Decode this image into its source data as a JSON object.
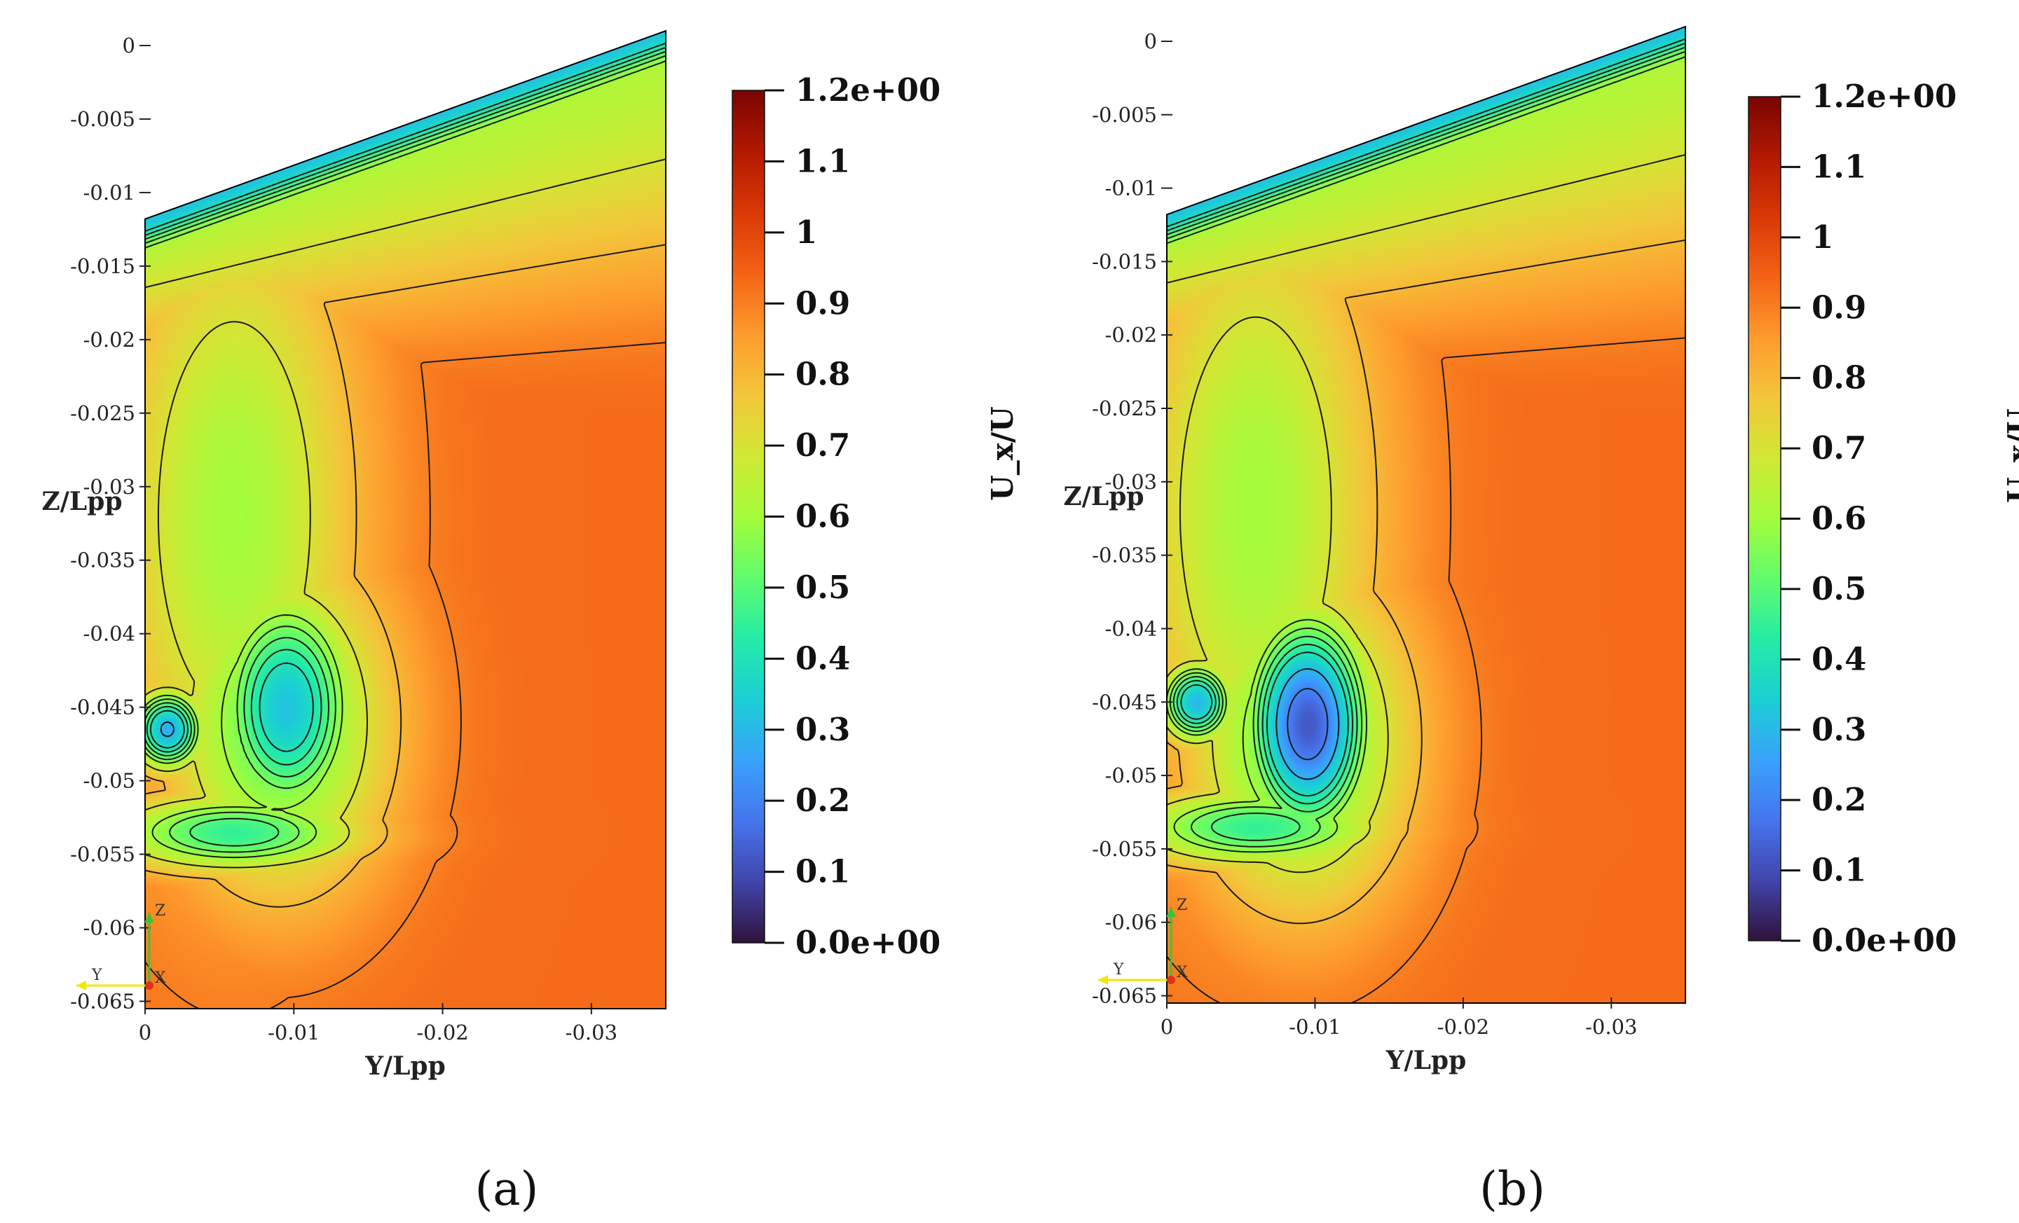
{
  "chart_data": [
    {
      "type": "heatmap",
      "caption": "(a)",
      "xlabel": "Y/Lpp",
      "ylabel": "Z/Lpp",
      "x_ticks": [
        "0",
        "-0.01",
        "-0.02",
        "-0.03"
      ],
      "x_tick_values": [
        0,
        -0.01,
        -0.02,
        -0.03
      ],
      "xlim": [
        0,
        -0.035
      ],
      "y_ticks": [
        "0",
        "-0.005",
        "-0.01",
        "-0.015",
        "-0.02",
        "-0.025",
        "-0.03",
        "-0.035",
        "-0.04",
        "-0.045",
        "-0.05",
        "-0.055",
        "-0.06",
        "-0.065"
      ],
      "y_tick_values": [
        0,
        -0.005,
        -0.01,
        -0.015,
        -0.02,
        -0.025,
        -0.03,
        -0.035,
        -0.04,
        -0.045,
        -0.05,
        -0.055,
        -0.06,
        -0.065
      ],
      "ylim": [
        -0.0655,
        0.001
      ],
      "colorbar": {
        "title": "U_x/U",
        "labels": [
          "1.2e+00",
          "1.1",
          "1",
          "0.9",
          "0.8",
          "0.7",
          "0.6",
          "0.5",
          "0.4",
          "0.3",
          "0.2",
          "0.1",
          "0.0e+00"
        ],
        "values": [
          1.2,
          1.1,
          1.0,
          0.9,
          0.8,
          0.7,
          0.6,
          0.5,
          0.4,
          0.3,
          0.2,
          0.1,
          0.0
        ],
        "range": [
          0.0,
          1.2
        ]
      },
      "field_summary": {
        "freestream_value": 0.93,
        "vortex_core_min": 0.32,
        "vortex_core_center": [
          -0.0095,
          -0.045
        ],
        "secondary_core_min": 0.28,
        "secondary_core_center": [
          -0.0015,
          -0.0465
        ]
      },
      "orientation_axes": [
        "Y",
        "Z",
        "X"
      ]
    },
    {
      "type": "heatmap",
      "caption": "(b)",
      "xlabel": "Y/Lpp",
      "ylabel": "Z/Lpp",
      "x_ticks": [
        "0",
        "-0.01",
        "-0.02",
        "-0.03"
      ],
      "x_tick_values": [
        0,
        -0.01,
        -0.02,
        -0.03
      ],
      "xlim": [
        0,
        -0.035
      ],
      "y_ticks": [
        "0",
        "-0.005",
        "-0.01",
        "-0.015",
        "-0.02",
        "-0.025",
        "-0.03",
        "-0.035",
        "-0.04",
        "-0.045",
        "-0.05",
        "-0.055",
        "-0.06",
        "-0.065"
      ],
      "y_tick_values": [
        0,
        -0.005,
        -0.01,
        -0.015,
        -0.02,
        -0.025,
        -0.03,
        -0.035,
        -0.04,
        -0.045,
        -0.05,
        -0.055,
        -0.06,
        -0.065
      ],
      "ylim": [
        -0.0655,
        0.001
      ],
      "colorbar": {
        "title": "U_x/U",
        "labels": [
          "1.2e+00",
          "1.1",
          "1",
          "0.9",
          "0.8",
          "0.7",
          "0.6",
          "0.5",
          "0.4",
          "0.3",
          "0.2",
          "0.1",
          "0.0e+00"
        ],
        "values": [
          1.2,
          1.1,
          1.0,
          0.9,
          0.8,
          0.7,
          0.6,
          0.5,
          0.4,
          0.3,
          0.2,
          0.1,
          0.0
        ],
        "range": [
          0.0,
          1.2
        ]
      },
      "field_summary": {
        "freestream_value": 0.93,
        "vortex_core_min": 0.12,
        "vortex_core_center": [
          -0.0095,
          -0.0465
        ],
        "secondary_core_min": 0.3,
        "secondary_core_center": [
          -0.002,
          -0.045
        ]
      },
      "orientation_axes": [
        "Y",
        "Z",
        "X"
      ]
    }
  ],
  "colors": {
    "colormap": [
      "#30123b",
      "#4145ab",
      "#4675ed",
      "#39a2fc",
      "#1bcfd4",
      "#24eca6",
      "#61fc6c",
      "#a4fc3b",
      "#d1e834",
      "#f3c63a",
      "#fe9b2d",
      "#f36315",
      "#d93806",
      "#b11901",
      "#7a0402"
    ],
    "contour_line": "#1a1a1a",
    "axis_y": "#f5e600",
    "axis_z": "#39c43a",
    "axis_x": "#e0301e"
  }
}
